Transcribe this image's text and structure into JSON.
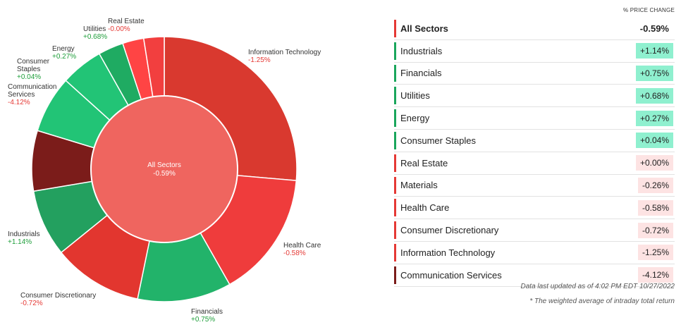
{
  "chart_data": {
    "type": "pie",
    "center": {
      "title": "All Sectors",
      "value": "-0.59%"
    },
    "slices": [
      {
        "name": "Information Technology",
        "value": -1.25,
        "label": "-1.25%",
        "weight": 26.5,
        "color": "#d9392f"
      },
      {
        "name": "Health Care",
        "value": -0.58,
        "label": "-0.58%",
        "weight": 15.5,
        "color": "#ef3c3c"
      },
      {
        "name": "Financials",
        "value": 0.75,
        "label": "+0.75%",
        "weight": 11.5,
        "color": "#22b36a"
      },
      {
        "name": "Consumer Discretionary",
        "value": -0.72,
        "label": "-0.72%",
        "weight": 11.0,
        "color": "#e2362f"
      },
      {
        "name": "Industrials",
        "value": 1.14,
        "label": "+1.14%",
        "weight": 8.2,
        "color": "#23a05f"
      },
      {
        "name": "Communication Services",
        "value": -4.12,
        "label": "-4.12%",
        "weight": 7.4,
        "color": "#7b1c1a"
      },
      {
        "name": "Consumer Staples",
        "value": 0.04,
        "label": "+0.04%",
        "weight": 7.0,
        "color": "#22c476"
      },
      {
        "name": "Energy",
        "value": 0.27,
        "label": "+0.27%",
        "weight": 5.2,
        "color": "#22c476"
      },
      {
        "name": "Utilities",
        "value": 0.68,
        "label": "+0.68%",
        "weight": 3.1,
        "color": "#1fab62"
      },
      {
        "name": "Real Estate",
        "value": 0.0,
        "label": "-0.00%",
        "weight": 2.6,
        "color": "#ff4444"
      },
      {
        "name": "Materials",
        "value": -0.26,
        "label": "",
        "weight": 2.5,
        "color": "#f23f3f"
      }
    ]
  },
  "table": {
    "header": "% PRICE CHANGE",
    "rows": [
      {
        "name": "All Sectors",
        "value": "-0.59%",
        "bar": "#e53935",
        "bg": "transparent"
      },
      {
        "name": "Industrials",
        "value": "+1.14%",
        "bar": "#1aa65c",
        "bg": "#8ff0cf"
      },
      {
        "name": "Financials",
        "value": "+0.75%",
        "bar": "#1aa65c",
        "bg": "#8ff0cf"
      },
      {
        "name": "Utilities",
        "value": "+0.68%",
        "bar": "#1aa65c",
        "bg": "#8ff0cf"
      },
      {
        "name": "Energy",
        "value": "+0.27%",
        "bar": "#1aa65c",
        "bg": "#8ff0cf"
      },
      {
        "name": "Consumer Staples",
        "value": "+0.04%",
        "bar": "#1aa65c",
        "bg": "#8ff0cf"
      },
      {
        "name": "Real Estate",
        "value": "+0.00%",
        "bar": "#e53935",
        "bg": "#fde3e3"
      },
      {
        "name": "Materials",
        "value": "-0.26%",
        "bar": "#e53935",
        "bg": "#fde3e3"
      },
      {
        "name": "Health Care",
        "value": "-0.58%",
        "bar": "#e53935",
        "bg": "#fde3e3"
      },
      {
        "name": "Consumer Discretionary",
        "value": "-0.72%",
        "bar": "#e53935",
        "bg": "#fde3e3"
      },
      {
        "name": "Information Technology",
        "value": "-1.25%",
        "bar": "#e53935",
        "bg": "#fde3e3"
      },
      {
        "name": "Communication Services",
        "value": "-4.12%",
        "bar": "#7b1c1a",
        "bg": "#fde3e3"
      }
    ]
  },
  "footnotes": {
    "updated": "Data last updated as of 4:02 PM EDT 10/27/2022",
    "weighted": "* The weighted average of intraday total return"
  }
}
